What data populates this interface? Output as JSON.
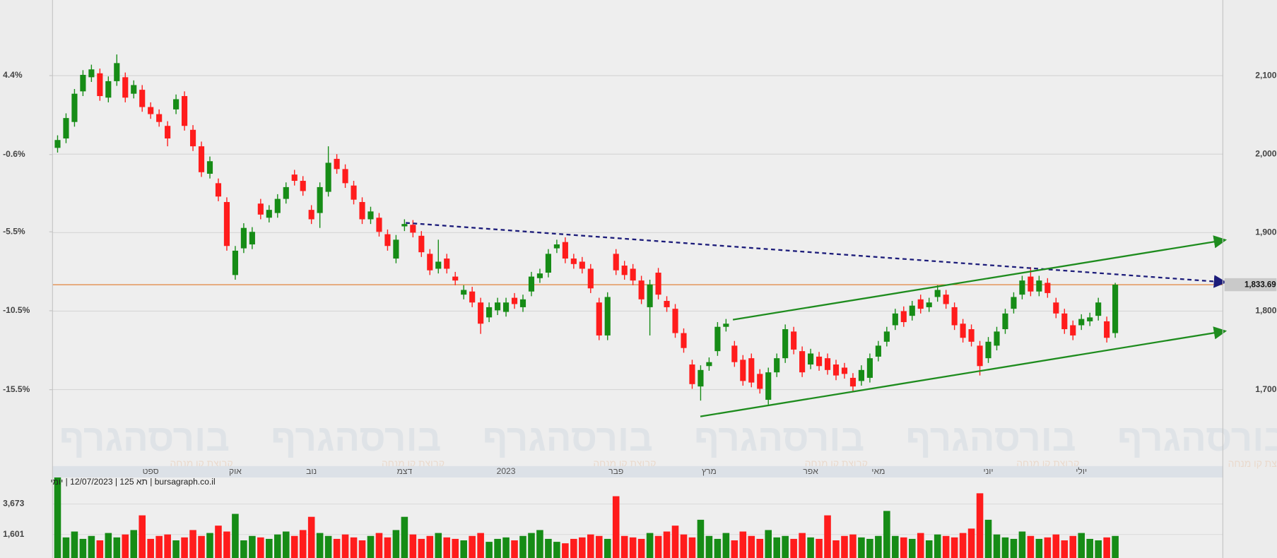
{
  "chart_data": {
    "type": "candlestick",
    "subtitle": "bursagraph.co.il | תא 125 | 12/07/2023 | יומי",
    "watermark": "בורסהגרף",
    "watermark_caption": "קבוצת קו מנחה",
    "up_color": "#168c16",
    "down_color": "#ff1c1c",
    "categories": [
      null,
      null,
      null,
      null,
      null,
      null,
      null,
      null,
      null,
      null,
      null,
      "ספט",
      null,
      null,
      null,
      null,
      null,
      null,
      null,
      null,
      null,
      "אוק",
      null,
      null,
      null,
      null,
      null,
      null,
      null,
      null,
      "נוב",
      null,
      null,
      null,
      null,
      null,
      null,
      null,
      null,
      null,
      null,
      "דצמ",
      null,
      null,
      null,
      null,
      null,
      null,
      null,
      null,
      null,
      null,
      null,
      "2023",
      null,
      null,
      null,
      null,
      null,
      null,
      null,
      null,
      null,
      null,
      null,
      null,
      "פבר",
      null,
      null,
      null,
      null,
      null,
      null,
      null,
      null,
      null,
      null,
      "מרץ",
      null,
      null,
      null,
      null,
      null,
      null,
      null,
      null,
      null,
      null,
      null,
      "אפר",
      null,
      null,
      null,
      null,
      null,
      null,
      null,
      "מאי",
      null,
      null,
      null,
      null,
      null,
      null,
      null,
      null,
      null,
      null,
      null,
      null,
      "יוני",
      null,
      null,
      null,
      null,
      null,
      null,
      null,
      null,
      null,
      null,
      "יולי",
      null,
      null,
      null,
      null
    ],
    "open": [
      2008,
      2020,
      2041,
      2080,
      2098,
      2103,
      2072,
      2093,
      2098,
      2077,
      2082,
      2060,
      2051,
      2036,
      2057,
      2074,
      2031,
      2010,
      1975,
      1963,
      1939,
      1846,
      1880,
      1885,
      1937,
      1919,
      1925,
      1943,
      1974,
      1966,
      1929,
      1925,
      1952,
      1994,
      1981,
      1960,
      1939,
      1917,
      1919,
      1898,
      1867,
      1908,
      1910,
      1896,
      1873,
      1854,
      1867,
      1844,
      1821,
      1825,
      1811,
      1792,
      1801,
      1799,
      1817,
      1805,
      1825,
      1842,
      1849,
      1880,
      1888,
      1867,
      1863,
      1854,
      1811,
      1769,
      1873,
      1858,
      1854,
      1839,
      1805,
      1849,
      1813,
      1803,
      1772,
      1732,
      1704,
      1730,
      1749,
      1780,
      1756,
      1738,
      1740,
      1720,
      1687,
      1722,
      1740,
      1774,
      1749,
      1732,
      1742,
      1740,
      1732,
      1728,
      1715,
      1711,
      1715,
      1742,
      1761,
      1782,
      1800,
      1794,
      1815,
      1805,
      1818,
      1821,
      1805,
      1784,
      1777,
      1756,
      1740,
      1756,
      1777,
      1803,
      1821,
      1844,
      1825,
      1836,
      1811,
      1797,
      1782,
      1782,
      1787,
      1794,
      1787,
      1772
    ],
    "high": [
      2024,
      2052,
      2083,
      2107,
      2114,
      2109,
      2099,
      2127,
      2104,
      2094,
      2088,
      2066,
      2057,
      2042,
      2076,
      2080,
      2037,
      2016,
      1997,
      1969,
      1945,
      1883,
      1912,
      1907,
      1943,
      1935,
      1949,
      1964,
      1980,
      1972,
      1935,
      1964,
      2010,
      2000,
      1987,
      1966,
      1945,
      1933,
      1925,
      1904,
      1897,
      1917,
      1916,
      1902,
      1879,
      1891,
      1873,
      1850,
      1833,
      1831,
      1817,
      1811,
      1817,
      1817,
      1823,
      1821,
      1850,
      1854,
      1879,
      1891,
      1894,
      1873,
      1869,
      1860,
      1817,
      1824,
      1879,
      1864,
      1860,
      1845,
      1840,
      1855,
      1819,
      1809,
      1778,
      1738,
      1731,
      1741,
      1786,
      1790,
      1762,
      1744,
      1746,
      1726,
      1728,
      1746,
      1783,
      1780,
      1755,
      1752,
      1748,
      1746,
      1738,
      1734,
      1721,
      1731,
      1746,
      1762,
      1780,
      1803,
      1806,
      1813,
      1821,
      1817,
      1833,
      1827,
      1811,
      1790,
      1783,
      1762,
      1767,
      1780,
      1803,
      1824,
      1845,
      1856,
      1845,
      1842,
      1817,
      1803,
      1788,
      1796,
      1798,
      1817,
      1793,
      1836
    ],
    "low": [
      2002,
      2014,
      2035,
      2074,
      2092,
      2068,
      2066,
      2087,
      2066,
      2071,
      2054,
      2045,
      2035,
      2010,
      2051,
      2030,
      2004,
      1971,
      1969,
      1940,
      1877,
      1840,
      1874,
      1879,
      1917,
      1913,
      1919,
      1937,
      1960,
      1947,
      1911,
      1906,
      1946,
      1975,
      1957,
      1936,
      1911,
      1911,
      1895,
      1877,
      1861,
      1902,
      1894,
      1869,
      1846,
      1848,
      1848,
      1833,
      1815,
      1805,
      1771,
      1786,
      1795,
      1793,
      1803,
      1799,
      1819,
      1836,
      1843,
      1874,
      1861,
      1854,
      1848,
      1823,
      1763,
      1763,
      1846,
      1840,
      1833,
      1809,
      1769,
      1815,
      1799,
      1766,
      1747,
      1701,
      1686,
      1724,
      1743,
      1774,
      1729,
      1705,
      1703,
      1695,
      1681,
      1716,
      1734,
      1745,
      1716,
      1726,
      1724,
      1719,
      1712,
      1714,
      1698,
      1705,
      1709,
      1736,
      1755,
      1776,
      1780,
      1788,
      1797,
      1799,
      1812,
      1803,
      1776,
      1760,
      1755,
      1718,
      1734,
      1750,
      1771,
      1797,
      1815,
      1819,
      1819,
      1817,
      1791,
      1771,
      1763,
      1776,
      1781,
      1788,
      1760,
      1766
    ],
    "close": [
      2018,
      2046,
      2077,
      2101,
      2108,
      2074,
      2093,
      2116,
      2072,
      2088,
      2060,
      2051,
      2041,
      2020,
      2070,
      2036,
      2010,
      1977,
      1991,
      1946,
      1883,
      1877,
      1906,
      1901,
      1923,
      1929,
      1943,
      1958,
      1966,
      1953,
      1917,
      1958,
      1989,
      1981,
      1963,
      1942,
      1917,
      1927,
      1901,
      1883,
      1891,
      1911,
      1900,
      1875,
      1852,
      1863,
      1854,
      1839,
      1827,
      1811,
      1784,
      1805,
      1811,
      1811,
      1809,
      1815,
      1844,
      1848,
      1873,
      1885,
      1867,
      1860,
      1854,
      1829,
      1769,
      1818,
      1852,
      1846,
      1839,
      1815,
      1834,
      1821,
      1805,
      1772,
      1753,
      1707,
      1725,
      1735,
      1780,
      1784,
      1735,
      1711,
      1709,
      1701,
      1722,
      1740,
      1777,
      1751,
      1722,
      1746,
      1730,
      1725,
      1718,
      1720,
      1704,
      1725,
      1740,
      1756,
      1774,
      1797,
      1786,
      1807,
      1803,
      1811,
      1827,
      1809,
      1782,
      1766,
      1761,
      1730,
      1761,
      1774,
      1797,
      1818,
      1839,
      1825,
      1839,
      1823,
      1797,
      1777,
      1769,
      1790,
      1792,
      1811,
      1766,
      1833.69
    ],
    "volume": [
      6000,
      1400,
      1800,
      1300,
      1500,
      1200,
      1700,
      1400,
      1600,
      1900,
      2900,
      1300,
      1500,
      1600,
      1200,
      1400,
      1900,
      1500,
      1700,
      2200,
      1800,
      3000,
      1200,
      1500,
      1400,
      1300,
      1600,
      1800,
      1500,
      1900,
      2800,
      1700,
      1500,
      1300,
      1600,
      1400,
      1200,
      1500,
      1700,
      1400,
      1900,
      2800,
      1600,
      1300,
      1500,
      1700,
      1400,
      1300,
      1200,
      1500,
      1700,
      1100,
      1300,
      1400,
      1200,
      1500,
      1700,
      1900,
      1300,
      1100,
      1000,
      1300,
      1400,
      1600,
      1500,
      1300,
      4200,
      1500,
      1400,
      1300,
      1700,
      1500,
      1800,
      2200,
      1600,
      1400,
      2600,
      1500,
      1300,
      1700,
      1200,
      1800,
      1500,
      1300,
      1900,
      1400,
      1500,
      1300,
      1700,
      1400,
      1300,
      2900,
      1200,
      1500,
      1600,
      1400,
      1300,
      1500,
      3200,
      1500,
      1400,
      1300,
      1700,
      1200,
      1600,
      1500,
      1400,
      1700,
      2000,
      4400,
      2600,
      1600,
      1400,
      1300,
      1800,
      1500,
      1300,
      1400,
      1600,
      1200,
      1500,
      1700,
      1300,
      1200,
      1400,
      1500
    ],
    "ylim": [
      1603.6,
      2196.4
    ],
    "yticks": [
      {
        "value": 1700,
        "label": "1,700"
      },
      {
        "value": 1800,
        "label": "1,800"
      },
      {
        "value": 1900,
        "label": "1,900"
      },
      {
        "value": 2000,
        "label": "2,000"
      },
      {
        "value": 2100,
        "label": "2,100"
      }
    ],
    "y2lim": [
      -20.29,
      9.19
    ],
    "y2ticks": [
      {
        "value": -15.5,
        "label": "-15.5%"
      },
      {
        "value": -10.5,
        "label": "-10.5%"
      },
      {
        "value": -5.5,
        "label": "-5.5%"
      },
      {
        "value": -0.6,
        "label": "-0.6%"
      },
      {
        "value": 4.4,
        "label": "4.4%"
      }
    ],
    "volume_lim": [
      0,
      6415
    ],
    "volume_ticks": [
      {
        "value": 1601,
        "label": "1,601"
      },
      {
        "value": 3673,
        "label": "3,673"
      }
    ],
    "last_price": {
      "value": 1833.69,
      "label": "1,833.69"
    },
    "last_price_color": "#e0782a",
    "grid": true
  }
}
